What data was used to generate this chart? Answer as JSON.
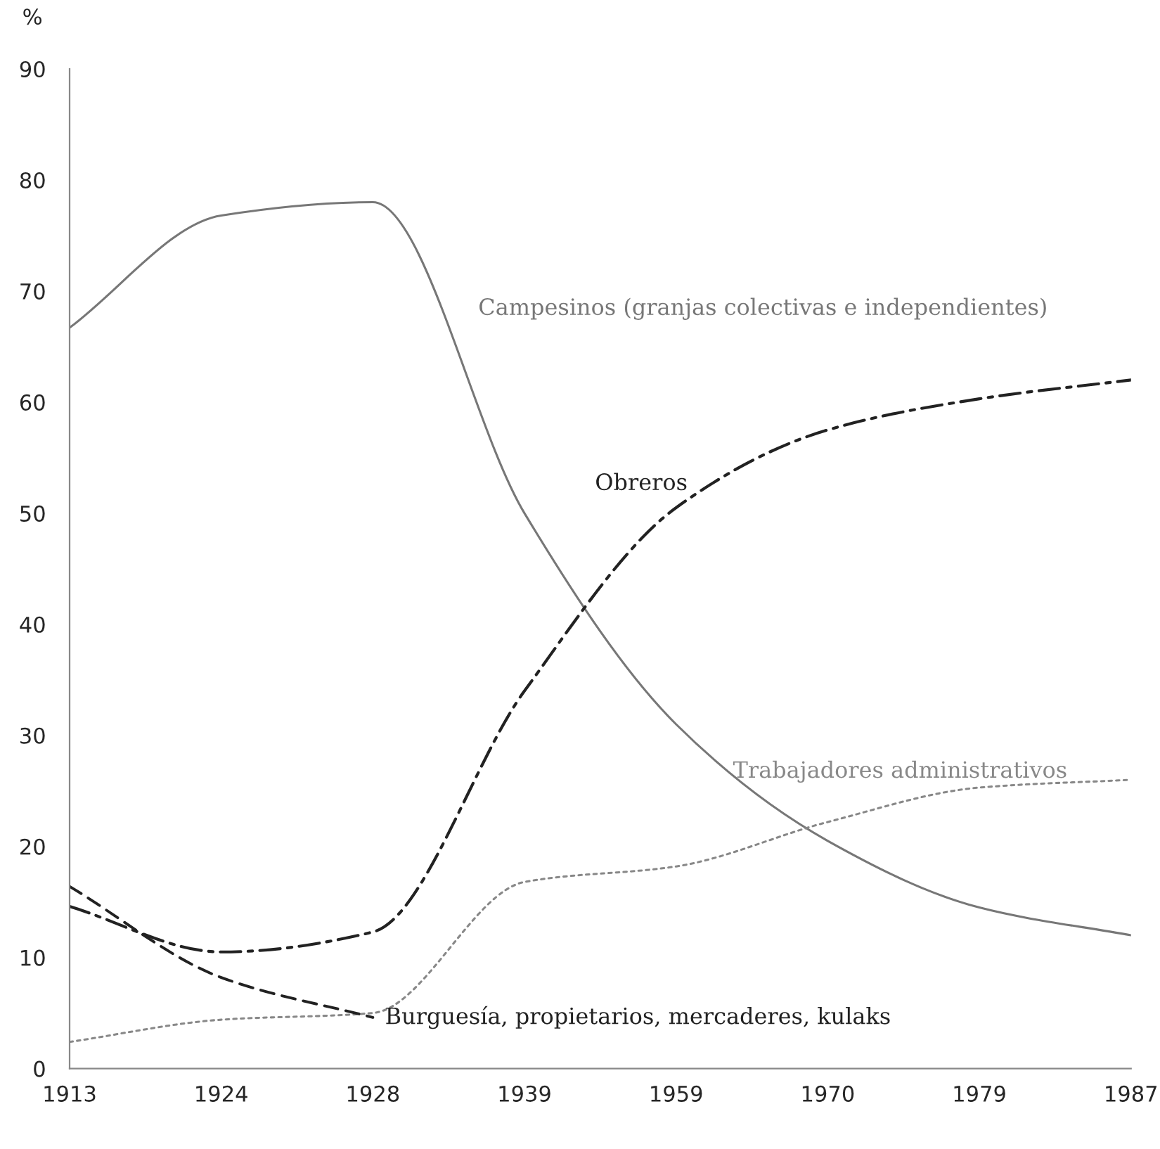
{
  "chart_data": {
    "type": "line",
    "ylabel": "%",
    "categories": [
      "1913",
      "1924",
      "1928",
      "1939",
      "1959",
      "1970",
      "1979",
      "1987"
    ],
    "ylim": [
      0,
      90
    ],
    "yticks": [
      0,
      10,
      20,
      30,
      40,
      50,
      60,
      70,
      80,
      90
    ],
    "grid": false,
    "legend": false,
    "series": [
      {
        "name": "Campesinos (granjas colectivas e independientes)",
        "color": "#777777",
        "line_style": "solid",
        "values": [
          66.7,
          76.8,
          78,
          50,
          31,
          20.5,
          14.5,
          12
        ]
      },
      {
        "name": "Obreros",
        "color": "#222222",
        "line_style": "dashdot",
        "values": [
          14.6,
          10.5,
          12.3,
          34,
          50.5,
          57.5,
          60.3,
          62
        ]
      },
      {
        "name": "Trabajadores administrativos",
        "color": "#888888",
        "line_style": "dotted",
        "values": [
          2.4,
          4.4,
          5,
          16.8,
          18.2,
          22.2,
          25.3,
          26
        ]
      },
      {
        "name": "Burguesía, propietarios, mercaderes, kulaks",
        "color": "#222222",
        "line_style": "dashed",
        "values": [
          16.4,
          8.2,
          4.6,
          null,
          null,
          null,
          null,
          null
        ]
      }
    ]
  }
}
